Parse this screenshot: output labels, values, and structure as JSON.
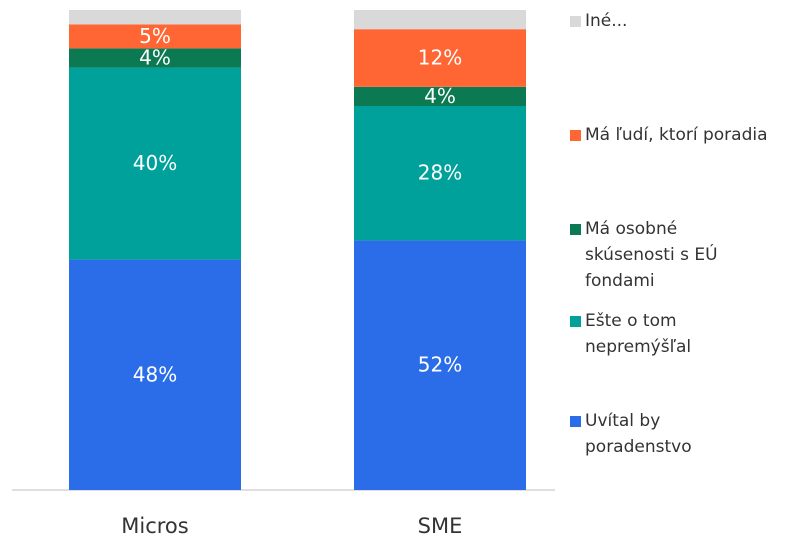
{
  "chart_data": {
    "type": "stacked_bar",
    "categories": [
      "Micros",
      "SME"
    ],
    "ylim": [
      0,
      100
    ],
    "series": [
      {
        "name": "Uvítal by poradenstvo",
        "color": "#2b6de8",
        "values": [
          48,
          52
        ],
        "value_labels": [
          "48%",
          "52%"
        ]
      },
      {
        "name": "Ešte o tom nepremýšľal",
        "color": "#00a19a",
        "values": [
          40,
          28
        ],
        "value_labels": [
          "40%",
          "28%"
        ]
      },
      {
        "name": "Má osobné skúsenosti s EÚ fondami",
        "color": "#0b7a52",
        "values": [
          4,
          4
        ],
        "value_labels": [
          "4%",
          "4%"
        ]
      },
      {
        "name": "Má ľudí, ktorí poradia",
        "color": "#ff6633",
        "values": [
          5,
          12
        ],
        "value_labels": [
          "5%",
          "12%"
        ]
      },
      {
        "name": "Iné...",
        "color": "#d9d9d9",
        "values": [
          3,
          4
        ]
      }
    ]
  }
}
